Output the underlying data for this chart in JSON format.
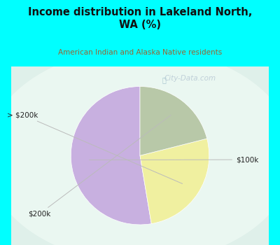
{
  "title": "Income distribution in Lakeland North,\nWA (%)",
  "subtitle": "American Indian and Alaska Native residents",
  "title_color": "#111111",
  "subtitle_color": "#996633",
  "border_color": "#00FFFF",
  "chart_bg": "#e8f5ee",
  "slices": [
    {
      "label": "$100k",
      "value": 50,
      "color": "#c8b0e0"
    },
    {
      "label": "> $200k",
      "value": 25,
      "color": "#f0f0a0"
    },
    {
      "label": "$200k",
      "value": 20,
      "color": "#b8c8a8"
    }
  ],
  "startangle": 90,
  "watermark": "City-Data.com"
}
